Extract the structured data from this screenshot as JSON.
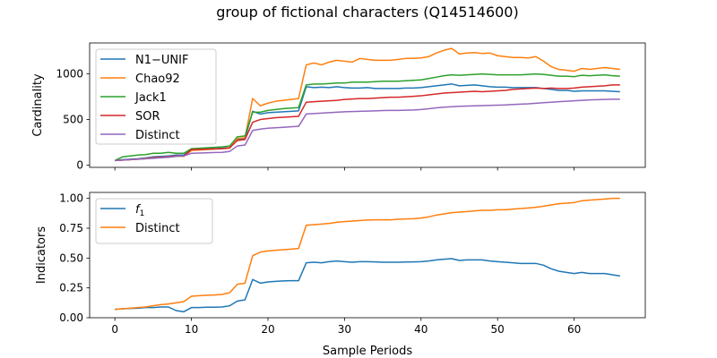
{
  "title": "group of fictional characters (Q14514600)",
  "colors": {
    "blue": "#1f77b4",
    "orange": "#ff7f0e",
    "green": "#2ca02c",
    "red": "#d62728",
    "purple": "#9467bd"
  },
  "chart_data": [
    {
      "type": "line",
      "ylabel": "Cardinality",
      "xlabel": "",
      "xlim": [
        -3.3,
        69.3
      ],
      "ylim": [
        -25,
        1340
      ],
      "xticks": [
        0,
        10,
        20,
        30,
        40,
        50,
        60
      ],
      "yticks": [
        0,
        500,
        1000
      ],
      "show_xtick_labels": false,
      "legend": "top-left",
      "series": [
        {
          "name": "N1−UNIF",
          "color": "#1f77b4",
          "values": [
            50,
            60,
            65,
            70,
            80,
            90,
            95,
            100,
            110,
            110,
            170,
            175,
            178,
            180,
            185,
            190,
            280,
            290,
            590,
            560,
            575,
            580,
            585,
            590,
            595,
            860,
            850,
            855,
            850,
            860,
            850,
            845,
            845,
            850,
            840,
            840,
            840,
            840,
            845,
            845,
            850,
            860,
            870,
            880,
            890,
            870,
            875,
            880,
            870,
            860,
            855,
            855,
            850,
            850,
            850,
            850,
            840,
            830,
            820,
            820,
            810,
            815,
            815,
            815,
            815,
            810,
            805
          ]
        },
        {
          "name": "Chao92",
          "color": "#ff7f0e",
          "values": [
            50,
            55,
            60,
            65,
            75,
            80,
            85,
            90,
            100,
            95,
            160,
            165,
            170,
            175,
            180,
            185,
            290,
            300,
            730,
            650,
            680,
            700,
            710,
            720,
            730,
            1100,
            1120,
            1100,
            1130,
            1150,
            1140,
            1130,
            1170,
            1160,
            1150,
            1150,
            1150,
            1160,
            1170,
            1170,
            1175,
            1190,
            1230,
            1260,
            1280,
            1220,
            1230,
            1235,
            1225,
            1230,
            1200,
            1190,
            1180,
            1180,
            1175,
            1190,
            1140,
            1080,
            1050,
            1040,
            1030,
            1060,
            1050,
            1060,
            1070,
            1060,
            1050
          ]
        },
        {
          "name": "Jack1",
          "color": "#2ca02c",
          "values": [
            50,
            90,
            100,
            110,
            115,
            130,
            130,
            140,
            130,
            130,
            180,
            185,
            190,
            195,
            200,
            210,
            310,
            320,
            580,
            580,
            600,
            610,
            620,
            625,
            630,
            880,
            890,
            890,
            895,
            900,
            900,
            910,
            910,
            910,
            915,
            920,
            920,
            920,
            925,
            930,
            935,
            950,
            965,
            980,
            990,
            985,
            990,
            995,
            1000,
            995,
            990,
            990,
            990,
            990,
            995,
            1000,
            995,
            985,
            975,
            975,
            970,
            985,
            980,
            985,
            990,
            980,
            975
          ]
        },
        {
          "name": "SOR",
          "color": "#d62728",
          "values": [
            50,
            55,
            60,
            65,
            70,
            80,
            85,
            90,
            100,
            100,
            170,
            172,
            175,
            178,
            180,
            190,
            270,
            280,
            470,
            500,
            510,
            520,
            525,
            530,
            535,
            690,
            695,
            700,
            705,
            710,
            720,
            725,
            730,
            730,
            735,
            740,
            745,
            745,
            750,
            755,
            760,
            770,
            780,
            790,
            795,
            800,
            805,
            810,
            805,
            810,
            815,
            820,
            830,
            835,
            840,
            845,
            840,
            845,
            840,
            840,
            845,
            855,
            860,
            865,
            870,
            880,
            880
          ]
        },
        {
          "name": "Distinct",
          "color": "#9467bd",
          "values": [
            50,
            55,
            60,
            65,
            70,
            75,
            80,
            85,
            95,
            100,
            130,
            132,
            135,
            138,
            140,
            150,
            210,
            220,
            380,
            395,
            405,
            410,
            415,
            420,
            425,
            560,
            565,
            570,
            575,
            580,
            585,
            588,
            590,
            592,
            595,
            598,
            600,
            600,
            602,
            605,
            610,
            618,
            628,
            635,
            640,
            645,
            648,
            650,
            652,
            655,
            658,
            660,
            665,
            668,
            672,
            678,
            685,
            690,
            695,
            700,
            705,
            710,
            715,
            718,
            720,
            722,
            722
          ]
        }
      ]
    },
    {
      "type": "line",
      "ylabel": "Indicators",
      "xlabel": "Sample Periods",
      "xlim": [
        -3.3,
        69.3
      ],
      "ylim": [
        0.0,
        1.05
      ],
      "xticks": [
        0,
        10,
        20,
        30,
        40,
        50,
        60
      ],
      "yticks": [
        0.0,
        0.25,
        0.5,
        0.75,
        1.0
      ],
      "ytick_labels": [
        "0.00",
        "0.25",
        "0.50",
        "0.75",
        "1.00"
      ],
      "show_xtick_labels": true,
      "legend": "top-left",
      "series": [
        {
          "name": "f1",
          "label_main": "f",
          "label_sub": "1",
          "color": "#1f77b4",
          "values": [
            0.07,
            0.075,
            0.078,
            0.08,
            0.085,
            0.085,
            0.09,
            0.09,
            0.06,
            0.05,
            0.085,
            0.085,
            0.088,
            0.088,
            0.09,
            0.1,
            0.14,
            0.15,
            0.32,
            0.29,
            0.3,
            0.305,
            0.308,
            0.31,
            0.31,
            0.46,
            0.465,
            0.46,
            0.47,
            0.475,
            0.47,
            0.465,
            0.47,
            0.47,
            0.468,
            0.465,
            0.465,
            0.465,
            0.467,
            0.468,
            0.47,
            0.475,
            0.485,
            0.49,
            0.495,
            0.48,
            0.485,
            0.485,
            0.485,
            0.475,
            0.47,
            0.465,
            0.46,
            0.455,
            0.455,
            0.455,
            0.44,
            0.41,
            0.39,
            0.38,
            0.37,
            0.38,
            0.37,
            0.37,
            0.37,
            0.36,
            0.35
          ]
        },
        {
          "name": "Distinct",
          "color": "#ff7f0e",
          "values": [
            0.07,
            0.075,
            0.08,
            0.085,
            0.09,
            0.1,
            0.11,
            0.115,
            0.125,
            0.135,
            0.18,
            0.185,
            0.188,
            0.19,
            0.195,
            0.21,
            0.28,
            0.29,
            0.52,
            0.55,
            0.56,
            0.565,
            0.57,
            0.575,
            0.58,
            0.775,
            0.78,
            0.785,
            0.79,
            0.8,
            0.805,
            0.81,
            0.815,
            0.818,
            0.82,
            0.82,
            0.82,
            0.825,
            0.828,
            0.83,
            0.835,
            0.845,
            0.86,
            0.87,
            0.88,
            0.885,
            0.89,
            0.895,
            0.9,
            0.9,
            0.905,
            0.905,
            0.91,
            0.915,
            0.92,
            0.925,
            0.935,
            0.945,
            0.955,
            0.96,
            0.965,
            0.98,
            0.985,
            0.99,
            0.995,
            1.0,
            1.0
          ]
        }
      ]
    }
  ]
}
